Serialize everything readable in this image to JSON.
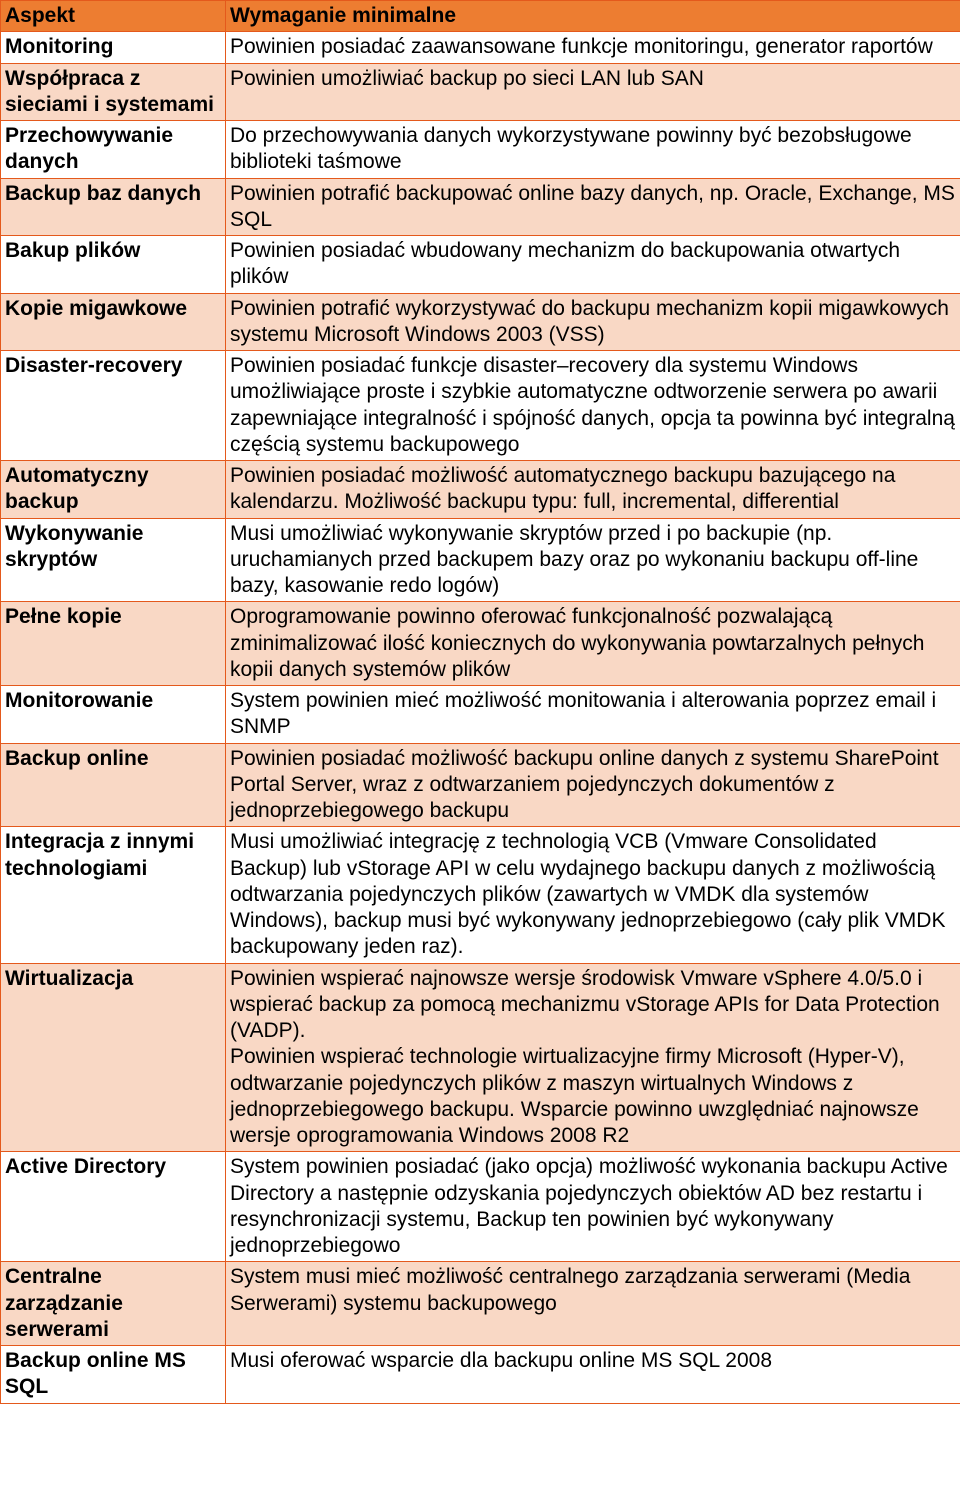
{
  "colors": {
    "header_bg": "#ed7d31",
    "odd_bg": "#ffffff",
    "even_bg": "#f9d8c5",
    "border": "#e4591c",
    "text": "#000000"
  },
  "table": {
    "header": {
      "aspect": "Aspekt",
      "requirement": "Wymaganie minimalne"
    },
    "rows": [
      {
        "aspect": "Monitoring",
        "requirement": "Powinien posiadać zaawansowane funkcje monitoringu, generator raportów"
      },
      {
        "aspect": "Współpraca z sieciami i systemami",
        "requirement": "Powinien umożliwiać backup po sieci LAN lub SAN"
      },
      {
        "aspect": "Przechowywanie danych",
        "requirement": "Do przechowywania danych wykorzystywane powinny być bezobsługowe biblioteki taśmowe"
      },
      {
        "aspect": "Backup baz danych",
        "requirement": "Powinien potrafić backupować online bazy danych, np. Oracle, Exchange, MS SQL"
      },
      {
        "aspect": "Bakup plików",
        "requirement": "Powinien posiadać wbudowany mechanizm do backupowania otwartych plików"
      },
      {
        "aspect": "Kopie migawkowe",
        "requirement": " Powinien potrafić wykorzystywać do backupu mechanizm kopii migawkowych systemu Microsoft Windows 2003 (VSS)"
      },
      {
        "aspect": "Disaster-recovery",
        "requirement": "Powinien posiadać funkcje disaster–recovery dla systemu Windows umożliwiające proste i szybkie automatyczne odtworzenie serwera po awarii zapewniające integralność i spójność danych, opcja ta powinna być integralną częścią systemu backupowego"
      },
      {
        "aspect": "Automatyczny backup",
        "requirement": "Powinien posiadać możliwość automatycznego backupu bazującego na kalendarzu. Możliwość backupu typu: full, incremental, differential"
      },
      {
        "aspect": "Wykonywanie skryptów",
        "requirement": "Musi umożliwiać wykonywanie skryptów przed i po backupie (np. uruchamianych przed backupem bazy oraz po wykonaniu backupu off-line bazy, kasowanie redo logów)"
      },
      {
        "aspect": "Pełne kopie",
        "requirement": "Oprogramowanie powinno oferować funkcjonalność pozwalającą zminimalizować ilość koniecznych do wykonywania powtarzalnych pełnych kopii danych systemów plików"
      },
      {
        "aspect": "Monitorowanie",
        "requirement": "System powinien mieć możliwość monitowania i alterowania poprzez email i SNMP"
      },
      {
        "aspect": "Backup online",
        "requirement": "Powinien posiadać możliwość backupu online danych z systemu SharePoint Portal Server, wraz z odtwarzaniem pojedynczych dokumentów z jednoprzebiegowego backupu"
      },
      {
        "aspect": "Integracja z innymi technologiami",
        "requirement": "Musi umożliwiać integrację z technologią VCB (Vmware Consolidated Backup) lub vStorage API w celu wydajnego backupu danych  z możliwością  odtwarzania  pojedynczych  plików  (zawartych  w  VMDK  dla  systemów  Windows), backup musi być wykonywany jednoprzebiegowo (cały plik VMDK backupowany jeden raz).\n"
      },
      {
        "aspect": "Wirtualizacja",
        "requirement": "Powinien wspierać  najnowsze  wersje  środowisk  Vmware  vSphere  4.0/5.0 i  wspierać  backup  za  pomocą mechanizmu vStorage APIs for Data Protection (VADP).\nPowinien wspierać technologie  wirtualizacyjne  firmy  Microsoft  (Hyper-V),  odtwarzanie  pojedynczych plików  z  maszyn  wirtualnych  Windows  z  jednoprzebiegowego  backupu.  Wsparcie  powinno uwzględniać najnowsze wersje oprogramowania Windows 2008 R2\n"
      },
      {
        "aspect": "Active Directory",
        "requirement": "System powinien posiadać (jako opcja) możliwość wykonania backupu Active Directory a następnie odzyskania pojedynczych obiektów AD bez restartu i resynchronizacji systemu, Backup ten powinien być wykonywany jednoprzebiegowo"
      },
      {
        "aspect": "Centralne zarządzanie serwerami",
        "requirement": "System musi mieć możliwość centralnego zarządzania serwerami (Media Serwerami) systemu backupowego\n\n"
      },
      {
        "aspect": "Backup online MS SQL",
        "requirement": "Musi oferować wsparcie dla backupu online MS SQL 2008"
      }
    ]
  }
}
